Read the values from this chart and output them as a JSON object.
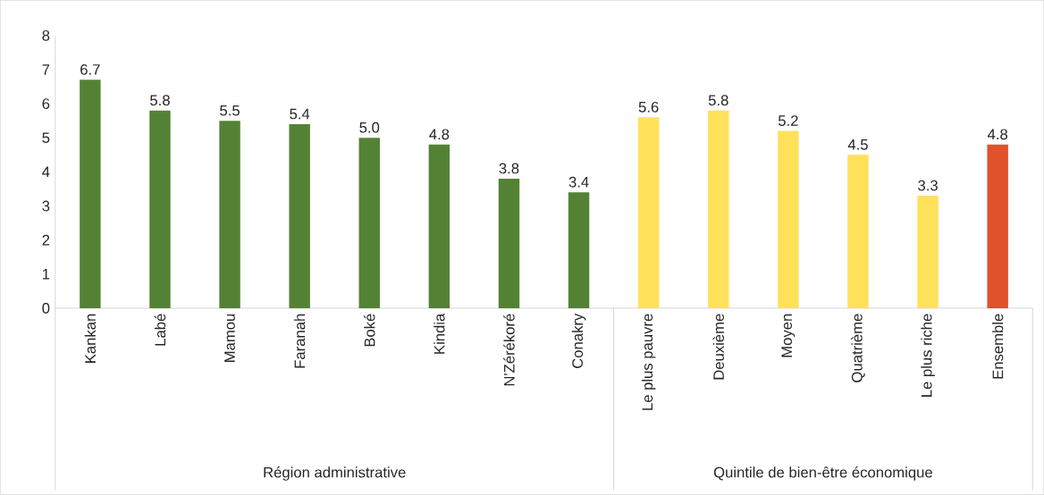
{
  "chart_data": {
    "type": "bar",
    "categories": [
      "Kankan",
      "Labé",
      "Mamou",
      "Faranah",
      "Boké",
      "Kindia",
      "N'Zérékoré",
      "Conakry",
      "Le plus pauvre",
      "Deuxième",
      "Moyen",
      "Quatrième",
      "Le plus riche",
      "Ensemble"
    ],
    "values": [
      6.7,
      5.8,
      5.5,
      5.4,
      5.0,
      4.8,
      3.8,
      3.4,
      5.6,
      5.8,
      5.2,
      4.5,
      3.3,
      4.8
    ],
    "value_labels": [
      "6.7",
      "5.8",
      "5.5",
      "5.4",
      "5.0",
      "4.8",
      "3.8",
      "3.4",
      "5.6",
      "5.8",
      "5.2",
      "4.5",
      "3.3",
      "4.8"
    ],
    "colors": [
      "#548235",
      "#548235",
      "#548235",
      "#548235",
      "#548235",
      "#548235",
      "#548235",
      "#548235",
      "#ffe15a",
      "#ffe15a",
      "#ffe15a",
      "#ffe15a",
      "#ffe15a",
      "#e0522a"
    ],
    "ylim": [
      0,
      8
    ],
    "yticks": [
      0,
      1,
      2,
      3,
      4,
      5,
      6,
      7,
      8
    ],
    "annotations": [
      "Région administrative",
      "Quintile de bien-être économique"
    ]
  }
}
